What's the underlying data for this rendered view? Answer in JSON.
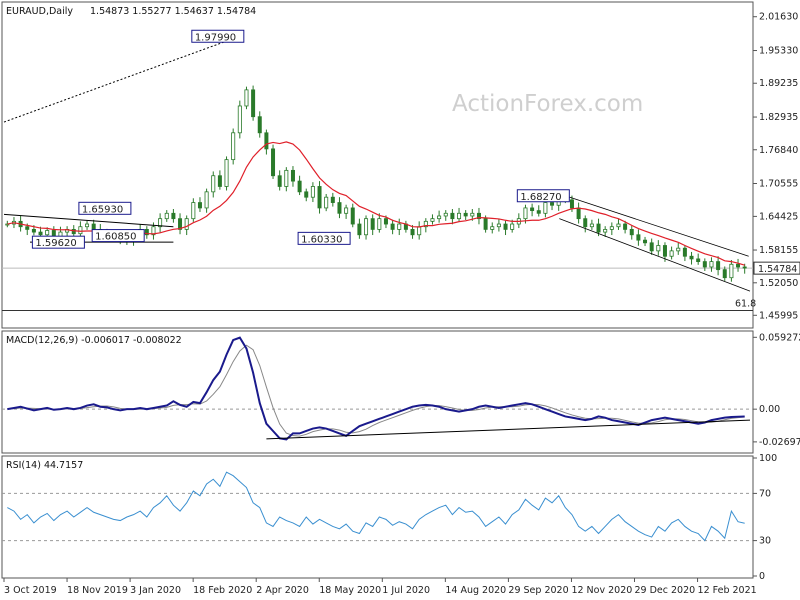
{
  "colors": {
    "candle": "#2a7a2a",
    "ma": "#e0202a",
    "macd": "#1a1a8c",
    "signal": "#888888",
    "rsi": "#3a8fd0",
    "trend": "#000000",
    "grid": "#c8c8c8",
    "label_border": "#1a1a8c",
    "watermark": "#cfcfcf"
  },
  "watermark": "ActionForex.com",
  "chart_data": [
    {
      "type": "candlestick",
      "title": "EURAUD,Daily",
      "ohlc": "1.54873 1.55277 1.54637 1.54784",
      "ylim": [
        1.44,
        2.04
      ],
      "yticks": [
        "2.01630",
        "1.95330",
        "1.89235",
        "1.82935",
        "1.76840",
        "1.70555",
        "1.64425",
        "1.58155",
        "1.52050",
        "1.45995"
      ],
      "xticks": [
        "3 Oct 2019",
        "18 Nov 2019",
        "3 Jan 2020",
        "18 Feb 2020",
        "2 Apr 2020",
        "18 May 2020",
        "1 Jul 2020",
        "14 Aug 2020",
        "29 Sep 2020",
        "12 Nov 2020",
        "29 Dec 2020",
        "12 Feb 2021"
      ],
      "current_price": "1.54784",
      "current_value": 1.5478,
      "fib_label": "61.8",
      "fib_value": 1.4688,
      "annotations": [
        {
          "text": "1.97990",
          "value": 1.9799
        },
        {
          "text": "1.65930",
          "value": 1.6593
        },
        {
          "text": "1.59620",
          "value": 1.5962
        },
        {
          "text": "1.60850",
          "value": 1.6085
        },
        {
          "text": "1.60330",
          "value": 1.6033
        },
        {
          "text": "1.68270",
          "value": 1.6827
        }
      ],
      "close_series": [
        1.63,
        1.635,
        1.625,
        1.62,
        1.615,
        1.61,
        1.618,
        1.605,
        1.615,
        1.62,
        1.612,
        1.625,
        1.63,
        1.62,
        1.615,
        1.61,
        1.607,
        1.6,
        1.6,
        1.61,
        1.62,
        1.61,
        1.625,
        1.64,
        1.65,
        1.64,
        1.62,
        1.64,
        1.67,
        1.66,
        1.69,
        1.72,
        1.7,
        1.75,
        1.8,
        1.85,
        1.88,
        1.83,
        1.8,
        1.77,
        1.72,
        1.7,
        1.73,
        1.71,
        1.69,
        1.68,
        1.7,
        1.66,
        1.68,
        1.67,
        1.65,
        1.66,
        1.63,
        1.61,
        1.64,
        1.62,
        1.64,
        1.63,
        1.62,
        1.63,
        1.62,
        1.61,
        1.625,
        1.635,
        1.64,
        1.645,
        1.65,
        1.64,
        1.65,
        1.645,
        1.65,
        1.64,
        1.62,
        1.625,
        1.63,
        1.62,
        1.63,
        1.64,
        1.66,
        1.655,
        1.65,
        1.67,
        1.665,
        1.68,
        1.675,
        1.66,
        1.64,
        1.625,
        1.63,
        1.615,
        1.62,
        1.625,
        1.63,
        1.62,
        1.61,
        1.6,
        1.595,
        1.58,
        1.59,
        1.57,
        1.58,
        1.585,
        1.57,
        1.565,
        1.56,
        1.55,
        1.56,
        1.545,
        1.53,
        1.555,
        1.55,
        1.548
      ]
    },
    {
      "type": "line",
      "title": "MACD(12,26,9) -0.006017 -0.008022",
      "ylim": [
        -0.0345,
        0.062
      ],
      "yticks": [
        "0.059272",
        "0.00",
        "-0.026978"
      ],
      "macd": [
        0.0,
        0.001,
        0.002,
        0.0005,
        -0.001,
        0.0,
        0.001,
        -0.0005,
        0.0,
        0.001,
        0.0,
        0.001,
        0.003,
        0.004,
        0.002,
        0.0015,
        0.0,
        -0.001,
        0.0,
        0.0,
        0.001,
        0.0,
        0.001,
        0.002,
        0.003,
        0.0065,
        0.0035,
        0.002,
        0.006,
        0.005,
        0.014,
        0.024,
        0.031,
        0.045,
        0.057,
        0.059,
        0.05,
        0.03,
        0.005,
        -0.012,
        -0.018,
        -0.024,
        -0.025,
        -0.02,
        -0.02,
        -0.018,
        -0.016,
        -0.015,
        -0.016,
        -0.018,
        -0.02,
        -0.022,
        -0.018,
        -0.014,
        -0.012,
        -0.01,
        -0.008,
        -0.006,
        -0.004,
        -0.002,
        0.0,
        0.002,
        0.003,
        0.0035,
        0.003,
        0.002,
        0.0,
        -0.001,
        -0.002,
        -0.001,
        0.0,
        0.002,
        0.003,
        0.002,
        0.001,
        0.002,
        0.003,
        0.004,
        0.005,
        0.004,
        0.002,
        0.0,
        -0.002,
        -0.004,
        -0.006,
        -0.007,
        -0.008,
        -0.009,
        -0.008,
        -0.006,
        -0.007,
        -0.009,
        -0.01,
        -0.011,
        -0.012,
        -0.013,
        -0.011,
        -0.009,
        -0.008,
        -0.007,
        -0.008,
        -0.009,
        -0.01,
        -0.011,
        -0.012,
        -0.011,
        -0.009,
        -0.008,
        -0.007,
        -0.0065,
        -0.0062,
        -0.006
      ],
      "trendline": [
        [
          0,
          -0.0245
        ],
        [
          1,
          -0.009
        ]
      ]
    },
    {
      "type": "line",
      "title": "RSI(14) 44.7157",
      "ylim": [
        0,
        100
      ],
      "yticks": [
        "100",
        "70",
        "30",
        "0"
      ],
      "values": [
        58,
        55,
        48,
        52,
        45,
        50,
        53,
        47,
        52,
        55,
        50,
        54,
        58,
        54,
        52,
        50,
        48,
        47,
        50,
        52,
        55,
        50,
        58,
        62,
        68,
        60,
        55,
        62,
        72,
        68,
        78,
        82,
        76,
        88,
        85,
        80,
        75,
        62,
        58,
        45,
        42,
        50,
        47,
        45,
        42,
        50,
        44,
        48,
        45,
        42,
        40,
        44,
        38,
        36,
        45,
        42,
        50,
        48,
        43,
        46,
        44,
        40,
        48,
        52,
        55,
        58,
        60,
        52,
        58,
        54,
        55,
        50,
        42,
        46,
        50,
        44,
        52,
        56,
        65,
        60,
        56,
        66,
        62,
        68,
        58,
        52,
        42,
        38,
        42,
        36,
        42,
        48,
        52,
        46,
        42,
        38,
        35,
        33,
        42,
        38,
        45,
        48,
        42,
        38,
        36,
        30,
        42,
        38,
        32,
        55,
        46,
        44.7
      ]
    }
  ]
}
